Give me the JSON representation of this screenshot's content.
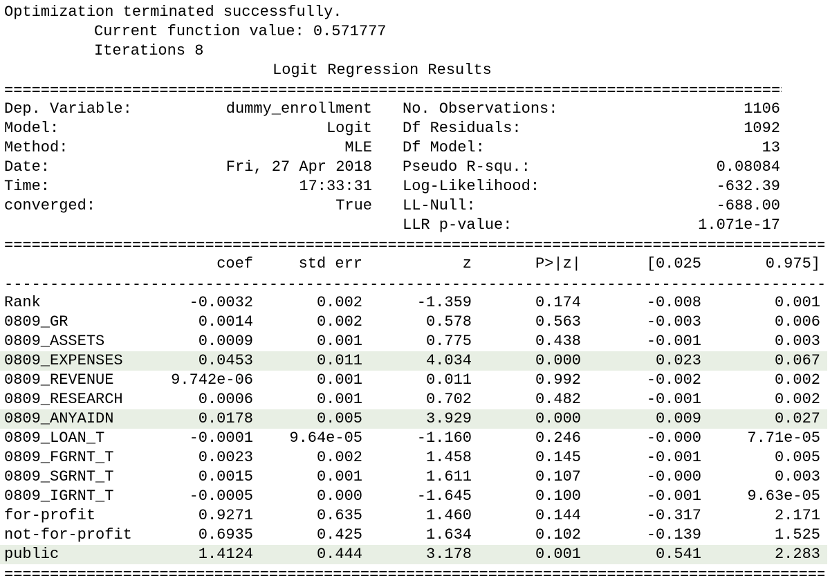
{
  "header": {
    "status": "Optimization terminated successfully.",
    "function_value": "Current function value: 0.571777",
    "iterations": "Iterations 8",
    "title": "Logit Regression Results"
  },
  "rules": {
    "double": "==============================================================================================",
    "dashed": "----------------------------------------------------------------------------------------------"
  },
  "summary": {
    "left": [
      {
        "label": "Dep. Variable:",
        "value": "dummy_enrollment"
      },
      {
        "label": "Model:",
        "value": "Logit"
      },
      {
        "label": "Method:",
        "value": "MLE"
      },
      {
        "label": "Date:",
        "value": "Fri, 27 Apr 2018"
      },
      {
        "label": "Time:",
        "value": "17:33:31"
      },
      {
        "label": "converged:",
        "value": "True"
      }
    ],
    "right": [
      {
        "label": "No. Observations:",
        "value": "1106"
      },
      {
        "label": "Df Residuals:",
        "value": "1092"
      },
      {
        "label": "Df Model:",
        "value": "13"
      },
      {
        "label": "Pseudo R-squ.:",
        "value": "0.08084"
      },
      {
        "label": "Log-Likelihood:",
        "value": "-632.39"
      },
      {
        "label": "LL-Null:",
        "value": "-688.00"
      },
      {
        "label": "LLR p-value:",
        "value": "1.071e-17"
      }
    ]
  },
  "table": {
    "headers": [
      "coef",
      "std err",
      "z",
      "P>|z|",
      "[0.025",
      "0.975]"
    ],
    "highlight_color": "#e8efe4",
    "rows": [
      {
        "name": "Rank",
        "coef": "-0.0032",
        "std_err": "0.002",
        "z": "-1.359",
        "p": "0.174",
        "ci_low": "-0.008",
        "ci_high": "0.001",
        "highlighted": false
      },
      {
        "name": "0809_GR",
        "coef": "0.0014",
        "std_err": "0.002",
        "z": "0.578",
        "p": "0.563",
        "ci_low": "-0.003",
        "ci_high": "0.006",
        "highlighted": false
      },
      {
        "name": "0809_ASSETS",
        "coef": "0.0009",
        "std_err": "0.001",
        "z": "0.775",
        "p": "0.438",
        "ci_low": "-0.001",
        "ci_high": "0.003",
        "highlighted": false
      },
      {
        "name": "0809_EXPENSES",
        "coef": "0.0453",
        "std_err": "0.011",
        "z": "4.034",
        "p": "0.000",
        "ci_low": "0.023",
        "ci_high": "0.067",
        "highlighted": true
      },
      {
        "name": "0809_REVENUE",
        "coef": "9.742e-06",
        "std_err": "0.001",
        "z": "0.011",
        "p": "0.992",
        "ci_low": "-0.002",
        "ci_high": "0.002",
        "highlighted": false
      },
      {
        "name": "0809_RESEARCH",
        "coef": "0.0006",
        "std_err": "0.001",
        "z": "0.702",
        "p": "0.482",
        "ci_low": "-0.001",
        "ci_high": "0.002",
        "highlighted": false
      },
      {
        "name": "0809_ANYAIDN",
        "coef": "0.0178",
        "std_err": "0.005",
        "z": "3.929",
        "p": "0.000",
        "ci_low": "0.009",
        "ci_high": "0.027",
        "highlighted": true
      },
      {
        "name": "0809_LOAN_T",
        "coef": "-0.0001",
        "std_err": "9.64e-05",
        "z": "-1.160",
        "p": "0.246",
        "ci_low": "-0.000",
        "ci_high": "7.71e-05",
        "highlighted": false
      },
      {
        "name": "0809_FGRNT_T",
        "coef": "0.0023",
        "std_err": "0.002",
        "z": "1.458",
        "p": "0.145",
        "ci_low": "-0.001",
        "ci_high": "0.005",
        "highlighted": false
      },
      {
        "name": "0809_SGRNT_T",
        "coef": "0.0015",
        "std_err": "0.001",
        "z": "1.611",
        "p": "0.107",
        "ci_low": "-0.000",
        "ci_high": "0.003",
        "highlighted": false
      },
      {
        "name": "0809_IGRNT_T",
        "coef": "-0.0005",
        "std_err": "0.000",
        "z": "-1.645",
        "p": "0.100",
        "ci_low": "-0.001",
        "ci_high": "9.63e-05",
        "highlighted": false
      },
      {
        "name": "for-profit",
        "coef": "0.9271",
        "std_err": "0.635",
        "z": "1.460",
        "p": "0.144",
        "ci_low": "-0.317",
        "ci_high": "2.171",
        "highlighted": false
      },
      {
        "name": "not-for-profit",
        "coef": "0.6935",
        "std_err": "0.425",
        "z": "1.634",
        "p": "0.102",
        "ci_low": "-0.139",
        "ci_high": "1.525",
        "highlighted": false
      },
      {
        "name": "public",
        "coef": "1.4124",
        "std_err": "0.444",
        "z": "3.178",
        "p": "0.001",
        "ci_low": "0.541",
        "ci_high": "2.283",
        "highlighted": true
      }
    ]
  }
}
